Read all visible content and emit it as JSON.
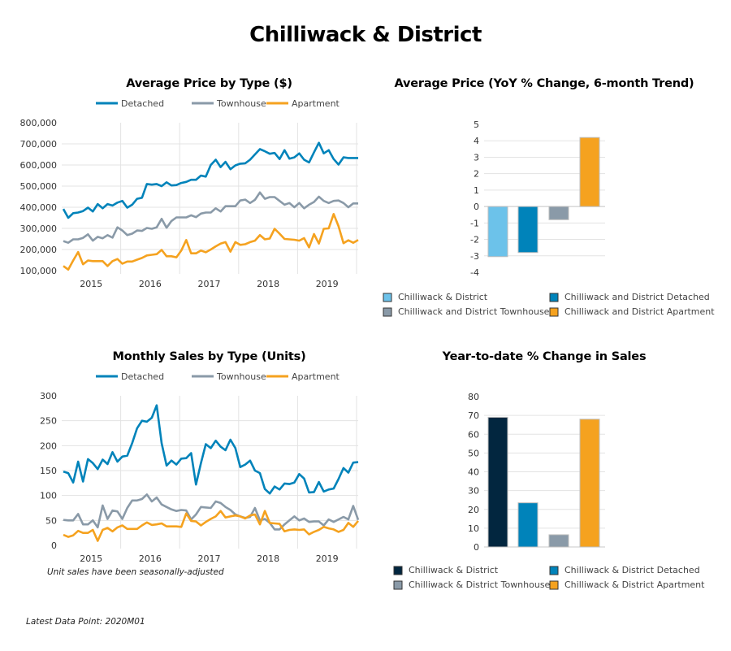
{
  "page": {
    "title": "Chilliwack & District",
    "sales_note": "Unit sales have been seasonally-adjusted",
    "footer": "Latest Data Point: 2020M01"
  },
  "colors": {
    "detached": "#0083BA",
    "townhouse": "#8A9AA8",
    "apartment": "#F5A21F",
    "all_light": "#6CC2EA",
    "all_dark": "#02263F",
    "grid": "#E3E3E3"
  },
  "chart_data": [
    {
      "id": "avg_price",
      "type": "line",
      "title": "Average Price by Type ($)",
      "xlabel": "",
      "ylabel": "",
      "x_start": "2015M01",
      "x_end": "2020M01",
      "x_tick_labels": [
        "2015",
        "2016",
        "2017",
        "2018",
        "2019"
      ],
      "y_tick_labels": [
        "100,000",
        "200,000",
        "300,000",
        "400,000",
        "500,000",
        "600,000",
        "700,000",
        "800,000"
      ],
      "ylim": [
        100000,
        800000
      ],
      "grid": true,
      "legend": "top-center",
      "series": [
        {
          "name": "Detached",
          "color_key": "detached",
          "values": [
            392000,
            350000,
            372000,
            375000,
            382000,
            398000,
            380000,
            415000,
            395000,
            415000,
            408000,
            422000,
            430000,
            398000,
            412000,
            440000,
            445000,
            510000,
            507000,
            510000,
            500000,
            518000,
            503000,
            505000,
            515000,
            520000,
            530000,
            530000,
            550000,
            545000,
            600000,
            625000,
            590000,
            615000,
            580000,
            598000,
            606000,
            608000,
            625000,
            650000,
            675000,
            665000,
            653000,
            657000,
            628000,
            670000,
            630000,
            636000,
            655000,
            625000,
            612000,
            660000,
            705000,
            655000,
            670000,
            628000,
            602000,
            636000,
            633000,
            633000,
            633000
          ]
        },
        {
          "name": "Townhouse",
          "color_key": "townhouse",
          "values": [
            240000,
            232000,
            248000,
            248000,
            255000,
            272000,
            242000,
            260000,
            253000,
            268000,
            256000,
            305000,
            290000,
            268000,
            275000,
            290000,
            288000,
            302000,
            298000,
            305000,
            345000,
            303000,
            335000,
            352000,
            352000,
            352000,
            362000,
            353000,
            370000,
            375000,
            375000,
            395000,
            380000,
            405000,
            405000,
            405000,
            432000,
            436000,
            420000,
            435000,
            470000,
            440000,
            448000,
            448000,
            430000,
            412000,
            420000,
            400000,
            420000,
            395000,
            412000,
            425000,
            450000,
            430000,
            420000,
            430000,
            432000,
            420000,
            400000,
            418000,
            418000
          ]
        },
        {
          "name": "Apartment",
          "color_key": "apartment",
          "values": [
            122000,
            105000,
            148000,
            188000,
            130000,
            148000,
            145000,
            145000,
            145000,
            122000,
            145000,
            155000,
            133000,
            143000,
            143000,
            152000,
            160000,
            172000,
            175000,
            178000,
            198000,
            168000,
            168000,
            163000,
            195000,
            245000,
            182000,
            182000,
            195000,
            187000,
            200000,
            215000,
            228000,
            235000,
            190000,
            235000,
            222000,
            225000,
            235000,
            242000,
            268000,
            248000,
            252000,
            298000,
            275000,
            250000,
            248000,
            246000,
            242000,
            254000,
            210000,
            273000,
            228000,
            298000,
            300000,
            368000,
            310000,
            230000,
            244000,
            232000,
            245000
          ]
        }
      ]
    },
    {
      "id": "avg_price_yoy",
      "type": "bar",
      "title": "Average Price (YoY % Change, 6-month Trend)",
      "categories": [
        "Chilliwack & District",
        "Chilliwack and District Detached",
        "Chilliwack and District Townhouse",
        "Chilliwack and District Apartment"
      ],
      "values": [
        -3.05,
        -2.8,
        -0.8,
        4.2
      ],
      "color_keys": [
        "all_light",
        "detached",
        "townhouse",
        "apartment"
      ],
      "y_tick_labels": [
        "-4",
        "-3",
        "-2",
        "-1",
        "0",
        "1",
        "2",
        "3",
        "4",
        "5"
      ],
      "ylim": [
        -4,
        5
      ],
      "grid": true,
      "legend": "bottom"
    },
    {
      "id": "monthly_sales",
      "type": "line",
      "title": "Monthly Sales by Type (Units)",
      "x_start": "2015M01",
      "x_end": "2020M01",
      "x_tick_labels": [
        "2015",
        "2016",
        "2017",
        "2018",
        "2019"
      ],
      "y_tick_labels": [
        "0",
        "50",
        "100",
        "150",
        "200",
        "250",
        "300"
      ],
      "ylim": [
        0,
        300
      ],
      "grid": true,
      "legend": "top-center",
      "series": [
        {
          "name": "Detached",
          "color_key": "detached",
          "values": [
            148,
            145,
            126,
            168,
            128,
            173,
            165,
            153,
            172,
            163,
            187,
            168,
            178,
            180,
            205,
            235,
            250,
            248,
            256,
            281,
            205,
            160,
            170,
            162,
            174,
            175,
            185,
            122,
            165,
            203,
            195,
            210,
            198,
            191,
            212,
            195,
            157,
            162,
            170,
            150,
            145,
            113,
            104,
            118,
            112,
            124,
            123,
            126,
            143,
            134,
            106,
            107,
            127,
            108,
            112,
            114,
            133,
            155,
            146,
            166,
            167
          ]
        },
        {
          "name": "Townhouse",
          "color_key": "townhouse",
          "values": [
            51,
            50,
            50,
            63,
            42,
            42,
            50,
            36,
            80,
            53,
            70,
            68,
            53,
            75,
            90,
            90,
            93,
            102,
            88,
            96,
            82,
            77,
            72,
            69,
            71,
            70,
            52,
            62,
            77,
            76,
            75,
            88,
            85,
            77,
            71,
            62,
            58,
            55,
            57,
            75,
            50,
            53,
            45,
            32,
            32,
            42,
            50,
            58,
            50,
            54,
            47,
            48,
            48,
            40,
            52,
            47,
            52,
            57,
            52,
            79,
            51
          ]
        },
        {
          "name": "Apartment",
          "color_key": "apartment",
          "values": [
            21,
            17,
            20,
            29,
            25,
            25,
            31,
            9,
            31,
            35,
            28,
            36,
            40,
            33,
            33,
            33,
            40,
            46,
            41,
            42,
            44,
            38,
            38,
            38,
            37,
            64,
            49,
            48,
            40,
            47,
            53,
            58,
            69,
            56,
            58,
            60,
            58,
            54,
            60,
            62,
            42,
            69,
            45,
            44,
            43,
            28,
            31,
            32,
            31,
            32,
            22,
            27,
            31,
            37,
            34,
            32,
            27,
            31,
            45,
            37,
            49
          ]
        }
      ]
    },
    {
      "id": "ytd_sales",
      "type": "bar",
      "title": "Year-to-date % Change in Sales",
      "categories": [
        "Chilliwack & District",
        "Chilliwack & District Detached",
        "Chilliwack & District Townhouse",
        "Chilliwack & District Apartment"
      ],
      "values": [
        69,
        23.5,
        6.5,
        68
      ],
      "color_keys": [
        "all_dark",
        "detached",
        "townhouse",
        "apartment"
      ],
      "y_tick_labels": [
        "0",
        "10",
        "20",
        "30",
        "40",
        "50",
        "60",
        "70",
        "80"
      ],
      "ylim": [
        0,
        80
      ],
      "grid": true,
      "legend": "bottom"
    }
  ]
}
